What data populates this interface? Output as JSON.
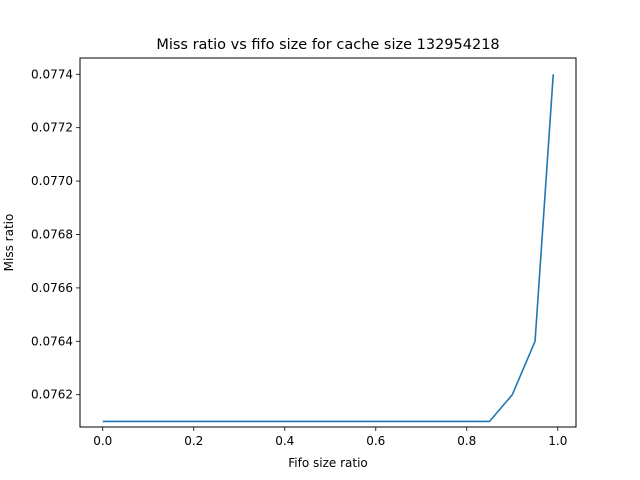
{
  "chart_data": {
    "type": "line",
    "title": "Miss ratio vs fifo size for cache size 132954218",
    "xlabel": "Fifo size ratio",
    "ylabel": "Miss ratio",
    "xlim": [
      -0.05,
      1.04
    ],
    "ylim": [
      0.076079,
      0.077461
    ],
    "xticks": [
      0.0,
      0.2,
      0.4,
      0.6,
      0.8,
      1.0
    ],
    "xtick_labels": [
      "0.0",
      "0.2",
      "0.4",
      "0.6",
      "0.8",
      "1.0"
    ],
    "yticks": [
      0.0762,
      0.0764,
      0.0766,
      0.0768,
      0.077,
      0.0772,
      0.0774
    ],
    "ytick_labels": [
      "0.0762",
      "0.0764",
      "0.0766",
      "0.0768",
      "0.0770",
      "0.0772",
      "0.0774"
    ],
    "grid": false,
    "series": [
      {
        "color": "#1f77b4",
        "x": [
          0.0,
          0.05,
          0.1,
          0.15,
          0.2,
          0.25,
          0.3,
          0.35,
          0.4,
          0.45,
          0.5,
          0.55,
          0.6,
          0.65,
          0.7,
          0.75,
          0.8,
          0.85,
          0.9,
          0.95,
          0.99
        ],
        "y": [
          0.0761,
          0.0761,
          0.0761,
          0.0761,
          0.0761,
          0.0761,
          0.0761,
          0.0761,
          0.0761,
          0.0761,
          0.0761,
          0.0761,
          0.0761,
          0.0761,
          0.0761,
          0.0761,
          0.0761,
          0.0761,
          0.0762,
          0.0764,
          0.0774
        ]
      }
    ]
  }
}
